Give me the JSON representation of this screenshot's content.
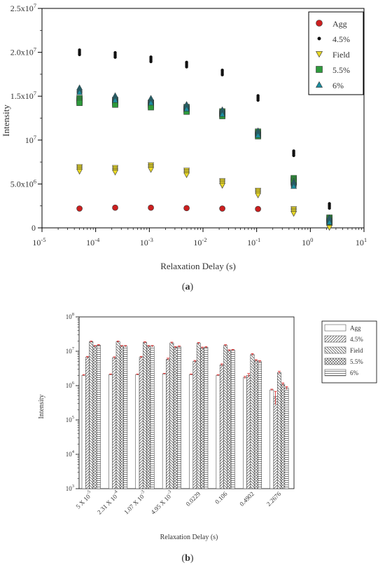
{
  "chart_data": [
    {
      "panel_label": "a",
      "type": "scatter",
      "xlabel": "Relaxation Delay (s)",
      "ylabel": "Intensity",
      "xscale": "log",
      "xlim": [
        1e-05,
        10
      ],
      "ylim": [
        0,
        25000000
      ],
      "x_ticks": [
        "10",
        "10",
        "10",
        "10",
        "10",
        "10",
        "10"
      ],
      "x_tick_exps": [
        "-5",
        "-4",
        "-3",
        "-2",
        "-1",
        "0",
        "1"
      ],
      "y_ticks": [
        "0",
        "5.0x10",
        "10",
        "1.5x10",
        "2.0x10",
        "2.5x10"
      ],
      "y_tick_exps": [
        "",
        "6",
        "7",
        "7",
        "7",
        "7"
      ],
      "legend_position": "top-right",
      "grid": false,
      "x": [
        5e-05,
        0.000231,
        0.00107,
        0.00495,
        0.0229,
        0.106,
        0.4902,
        2.2676
      ],
      "series": [
        {
          "name": "Agg",
          "marker": "circle",
          "color": "#cc1f1f",
          "values": [
            2200000,
            2300000,
            2300000,
            2250000,
            2200000,
            2150000,
            null,
            null
          ]
        },
        {
          "name": "4.5%",
          "marker": "dot",
          "color": "#111111",
          "values": [
            20000000,
            19700000,
            19200000,
            18600000,
            17700000,
            14800000,
            8500000,
            2500000
          ]
        },
        {
          "name": "Field",
          "marker": "triangle-down",
          "color": "#e8d826",
          "values": [
            6700000,
            6600000,
            6900000,
            6300000,
            5100000,
            4000000,
            1900000,
            300000
          ]
        },
        {
          "name": "5.5%",
          "marker": "square",
          "color": "#2e9a3c",
          "values": [
            14500000,
            14300000,
            14000000,
            13500000,
            13000000,
            10700000,
            5400000,
            900000
          ]
        },
        {
          "name": "6%",
          "marker": "triangle-up",
          "color": "#1b8fa0",
          "values": [
            15700000,
            14800000,
            14500000,
            13800000,
            13200000,
            10800000,
            5000000,
            900000
          ]
        }
      ]
    },
    {
      "panel_label": "b",
      "type": "bar",
      "xlabel": "Relaxation Delay (s)",
      "ylabel": "Intensity",
      "yscale": "log",
      "ylim": [
        1000,
        100000000
      ],
      "y_ticks": [
        "10",
        "10",
        "10",
        "10",
        "10",
        "10"
      ],
      "y_tick_exps": [
        "3",
        "4",
        "5",
        "6",
        "7",
        "8"
      ],
      "legend_position": "top-right",
      "categories": [
        "5 X 10",
        "2.31 X 10",
        "1.07 X 10",
        "4.95 X 10",
        "0.0229",
        "0.106",
        "0.4902",
        "2.2676"
      ],
      "category_exps": [
        "-5",
        "-4",
        "-3",
        "-3",
        "",
        "",
        "",
        ""
      ],
      "series": [
        {
          "name": "Agg",
          "pattern": "none",
          "values": [
            2000000,
            2100000,
            2100000,
            2200000,
            2100000,
            2000000,
            1700000,
            750000
          ],
          "errors": [
            80000,
            80000,
            80000,
            80000,
            80000,
            80000,
            150000,
            40000
          ]
        },
        {
          "name": "4.5%",
          "pattern": "diag-right",
          "values": [
            6700000,
            6500000,
            6700000,
            5900000,
            5100000,
            4000000,
            2000000,
            480000
          ],
          "errors": [
            400000,
            400000,
            400000,
            400000,
            300000,
            300000,
            250000,
            200000
          ]
        },
        {
          "name": "Field",
          "pattern": "diag-left",
          "values": [
            19000000,
            19000000,
            18000000,
            17500000,
            17000000,
            14800000,
            8000000,
            2400000
          ],
          "errors": [
            900000,
            900000,
            900000,
            900000,
            900000,
            700000,
            500000,
            200000
          ]
        },
        {
          "name": "5.5%",
          "pattern": "cross",
          "values": [
            14000000,
            14000000,
            14000000,
            13000000,
            12500000,
            10500000,
            5400000,
            1100000
          ],
          "errors": [
            700000,
            700000,
            700000,
            700000,
            700000,
            500000,
            300000,
            100000
          ]
        },
        {
          "name": "6%",
          "pattern": "horizontal",
          "values": [
            15000000,
            14000000,
            14000000,
            13500000,
            13000000,
            10800000,
            5000000,
            850000
          ],
          "errors": [
            700000,
            700000,
            700000,
            700000,
            700000,
            500000,
            300000,
            80000
          ]
        }
      ]
    }
  ]
}
